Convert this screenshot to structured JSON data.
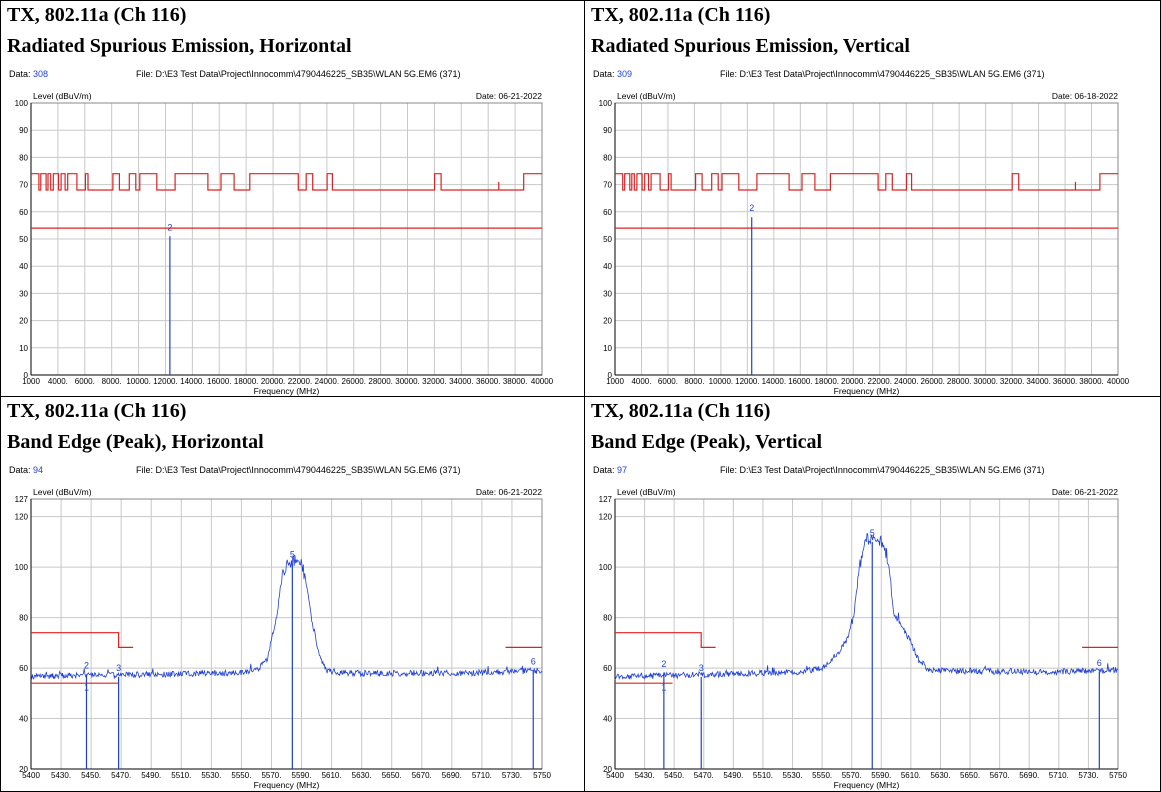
{
  "panels": [
    {
      "title_line1": "TX, 802.11a (Ch 116)",
      "title_line2": "Radiated Spurious Emission, Horizontal",
      "data_label": "Data:",
      "data_value": "308",
      "file": "File: D:\\E3 Test Data\\Project\\Innocomm\\4790446225_SB35\\WLAN 5G.EM6  (371)",
      "date": "Date: 06-21-2022"
    },
    {
      "title_line1": "TX, 802.11a (Ch 116)",
      "title_line2": "Radiated Spurious Emission, Vertical",
      "data_label": "Data:",
      "data_value": "309",
      "file": "File: D:\\E3 Test Data\\Project\\Innocomm\\4790446225_SB35\\WLAN 5G.EM6  (371)",
      "date": "Date: 06-18-2022"
    },
    {
      "title_line1": "TX, 802.11a (Ch 116)",
      "title_line2": "Band Edge (Peak), Horizontal",
      "data_label": "Data:",
      "data_value": "94",
      "file": "File: D:\\E3 Test Data\\Project\\Innocomm\\4790446225_SB35\\WLAN 5G.EM6  (371)",
      "date": "Date: 06-21-2022"
    },
    {
      "title_line1": "TX, 802.11a (Ch 116)",
      "title_line2": "Band Edge (Peak), Vertical",
      "data_label": "Data:",
      "data_value": "97",
      "file": "File: D:\\E3 Test Data\\Project\\Innocomm\\4790446225_SB35\\WLAN 5G.EM6  (371)",
      "date": "Date: 06-21-2022"
    }
  ],
  "colors": {
    "limit": "#e02020",
    "trace": "#1f3fd6",
    "grid": "#c8c8c8",
    "axis": "#000000"
  },
  "chart_data": [
    {
      "type": "line",
      "ylabel": "Level (dBuV/m)",
      "xlabel": "Frequency (MHz)",
      "xlim": [
        1000,
        40000
      ],
      "ylim": [
        0,
        100
      ],
      "x_ticks": [
        "1000",
        "4000.",
        "6000.",
        "8000.",
        "10000.",
        "12000.",
        "14000.",
        "16000.",
        "18000.",
        "20000.",
        "22000.",
        "24000.",
        "26000.",
        "28000.",
        "30000.",
        "32000.",
        "34000.",
        "36000.",
        "38000.",
        "40000"
      ],
      "y_ticks": [
        "0",
        "10",
        "20",
        "30",
        "40",
        "50",
        "60",
        "70",
        "80",
        "90",
        "100"
      ],
      "grid": true,
      "series": [
        {
          "kind": "limit_step",
          "points": [
            [
              1000,
              74
            ],
            [
              1600,
              74
            ],
            [
              1600,
              68
            ],
            [
              1750,
              68
            ],
            [
              1750,
              74
            ],
            [
              2150,
              74
            ],
            [
              2150,
              68
            ],
            [
              2300,
              68
            ],
            [
              2300,
              74
            ],
            [
              2500,
              74
            ],
            [
              2500,
              68
            ],
            [
              2700,
              68
            ],
            [
              2700,
              74
            ],
            [
              3100,
              74
            ],
            [
              3100,
              68
            ],
            [
              3300,
              68
            ],
            [
              3300,
              74
            ],
            [
              3600,
              74
            ],
            [
              3600,
              68
            ],
            [
              3800,
              68
            ],
            [
              3800,
              74
            ],
            [
              4500,
              74
            ],
            [
              4500,
              68
            ],
            [
              5150,
              68
            ],
            [
              5150,
              74
            ],
            [
              5350,
              74
            ],
            [
              5350,
              68
            ],
            [
              7250,
              68
            ],
            [
              7250,
              74
            ],
            [
              7750,
              74
            ],
            [
              7750,
              68
            ],
            [
              8500,
              68
            ],
            [
              8500,
              74
            ],
            [
              9000,
              74
            ],
            [
              9000,
              68
            ],
            [
              9300,
              68
            ],
            [
              9300,
              74
            ],
            [
              10600,
              74
            ],
            [
              10600,
              68
            ],
            [
              12000,
              68
            ],
            [
              12000,
              74
            ],
            [
              14500,
              74
            ],
            [
              14500,
              68
            ],
            [
              15500,
              68
            ],
            [
              15500,
              74
            ],
            [
              16500,
              74
            ],
            [
              16500,
              68
            ],
            [
              17700,
              68
            ],
            [
              17700,
              74
            ],
            [
              21400,
              74
            ],
            [
              21400,
              68
            ],
            [
              22000,
              68
            ],
            [
              22000,
              74
            ],
            [
              22500,
              74
            ],
            [
              22500,
              68
            ],
            [
              23600,
              68
            ],
            [
              23600,
              74
            ],
            [
              24000,
              74
            ],
            [
              24000,
              68
            ],
            [
              31800,
              68
            ],
            [
              31800,
              74
            ],
            [
              32300,
              74
            ],
            [
              32300,
              68
            ],
            [
              38600,
              68
            ],
            [
              38600,
              74
            ],
            [
              40000,
              74
            ]
          ]
        },
        {
          "kind": "limit_flat",
          "points": [
            [
              1000,
              54
            ],
            [
              40000,
              54
            ]
          ]
        },
        {
          "kind": "marker_line",
          "x": 11600,
          "y": 51,
          "label": "2"
        },
        {
          "kind": "spike",
          "x": 36700,
          "y1": 68,
          "y2": 71
        }
      ]
    },
    {
      "type": "line",
      "ylabel": "Level (dBuV/m)",
      "xlabel": "Frequency (MHz)",
      "xlim": [
        1000,
        40000
      ],
      "ylim": [
        0,
        100
      ],
      "x_ticks": [
        "1000",
        "4000.",
        "6000.",
        "8000.",
        "10000.",
        "12000.",
        "14000.",
        "16000.",
        "18000.",
        "20000.",
        "22000.",
        "24000.",
        "26000.",
        "28000.",
        "30000.",
        "32000.",
        "34000.",
        "36000.",
        "38000.",
        "40000"
      ],
      "y_ticks": [
        "0",
        "10",
        "20",
        "30",
        "40",
        "50",
        "60",
        "70",
        "80",
        "90",
        "100"
      ],
      "grid": true,
      "series": [
        {
          "kind": "limit_step",
          "points": [
            [
              1000,
              74
            ],
            [
              1600,
              74
            ],
            [
              1600,
              68
            ],
            [
              1750,
              68
            ],
            [
              1750,
              74
            ],
            [
              2150,
              74
            ],
            [
              2150,
              68
            ],
            [
              2300,
              68
            ],
            [
              2300,
              74
            ],
            [
              2500,
              74
            ],
            [
              2500,
              68
            ],
            [
              2700,
              68
            ],
            [
              2700,
              74
            ],
            [
              3100,
              74
            ],
            [
              3100,
              68
            ],
            [
              3300,
              68
            ],
            [
              3300,
              74
            ],
            [
              3600,
              74
            ],
            [
              3600,
              68
            ],
            [
              3800,
              68
            ],
            [
              3800,
              74
            ],
            [
              4500,
              74
            ],
            [
              4500,
              68
            ],
            [
              5150,
              68
            ],
            [
              5150,
              74
            ],
            [
              5350,
              74
            ],
            [
              5350,
              68
            ],
            [
              7250,
              68
            ],
            [
              7250,
              74
            ],
            [
              7750,
              74
            ],
            [
              7750,
              68
            ],
            [
              8500,
              68
            ],
            [
              8500,
              74
            ],
            [
              9000,
              74
            ],
            [
              9000,
              68
            ],
            [
              9300,
              68
            ],
            [
              9300,
              74
            ],
            [
              10600,
              74
            ],
            [
              10600,
              68
            ],
            [
              12000,
              68
            ],
            [
              12000,
              74
            ],
            [
              14500,
              74
            ],
            [
              14500,
              68
            ],
            [
              15500,
              68
            ],
            [
              15500,
              74
            ],
            [
              16500,
              74
            ],
            [
              16500,
              68
            ],
            [
              17700,
              68
            ],
            [
              17700,
              74
            ],
            [
              21400,
              74
            ],
            [
              21400,
              68
            ],
            [
              22000,
              68
            ],
            [
              22000,
              74
            ],
            [
              22500,
              74
            ],
            [
              22500,
              68
            ],
            [
              23600,
              68
            ],
            [
              23600,
              74
            ],
            [
              24000,
              74
            ],
            [
              24000,
              68
            ],
            [
              31800,
              68
            ],
            [
              31800,
              74
            ],
            [
              32300,
              74
            ],
            [
              32300,
              68
            ],
            [
              38600,
              68
            ],
            [
              38600,
              74
            ],
            [
              40000,
              74
            ]
          ]
        },
        {
          "kind": "limit_flat",
          "points": [
            [
              1000,
              54
            ],
            [
              40000,
              54
            ]
          ]
        },
        {
          "kind": "marker_line",
          "x": 11600,
          "y": 58,
          "label": "2"
        },
        {
          "kind": "spike",
          "x": 36700,
          "y1": 68,
          "y2": 71
        }
      ]
    },
    {
      "type": "line",
      "ylabel": "Level (dBuV/m)",
      "xlabel": "Frequency (MHz)",
      "xlim": [
        5400,
        5750
      ],
      "ylim": [
        20,
        127
      ],
      "x_ticks": [
        "5400",
        "5430.",
        "5450.",
        "5470.",
        "5490.",
        "5510.",
        "5530.",
        "5550.",
        "5570.",
        "5590.",
        "5610.",
        "5630.",
        "5650.",
        "5670.",
        "5690.",
        "5710.",
        "5730.",
        "5750"
      ],
      "y_ticks": [
        "20",
        "40",
        "60",
        "80",
        "100",
        "120",
        "127"
      ],
      "grid": true,
      "series": [
        {
          "kind": "limit_step",
          "points": [
            [
              5400,
              74
            ],
            [
              5460,
              74
            ],
            [
              5460,
              68.2
            ],
            [
              5470,
              68.2
            ]
          ]
        },
        {
          "kind": "limit_step",
          "points": [
            [
              5725,
              68.2
            ],
            [
              5750,
              68.2
            ]
          ]
        },
        {
          "kind": "limit_flat",
          "points": [
            [
              5400,
              54
            ],
            [
              5460,
              54
            ]
          ]
        },
        {
          "kind": "trace",
          "baseline": 57,
          "noise": 1.2,
          "envelope": [
            [
              5400,
              56.8
            ],
            [
              5460,
              57.2
            ],
            [
              5540,
              58
            ],
            [
              5555,
              59
            ],
            [
              5562,
              64
            ],
            [
              5568,
              80
            ],
            [
              5572,
              96
            ],
            [
              5575,
              101
            ],
            [
              5580,
              103
            ],
            [
              5585,
              101
            ],
            [
              5588,
              96
            ],
            [
              5592,
              80
            ],
            [
              5598,
              64
            ],
            [
              5602,
              59
            ],
            [
              5615,
              58
            ],
            [
              5700,
              58
            ],
            [
              5750,
              59
            ]
          ],
          "peak_x": [
            5572,
            5588
          ]
        },
        {
          "kind": "marker_line",
          "x": 5438,
          "y": 57.5,
          "label": "2"
        },
        {
          "kind": "marker_line",
          "x": 5460,
          "y": 56.5,
          "label": "3"
        },
        {
          "kind": "marker_line",
          "x": 5579,
          "y": 101.5,
          "label": "5"
        },
        {
          "kind": "marker_line",
          "x": 5744,
          "y": 59,
          "label": "6"
        },
        {
          "kind": "marker_dot",
          "x": 5438,
          "y": 53.8,
          "label": "1"
        }
      ]
    },
    {
      "type": "line",
      "ylabel": "Level (dBuV/m)",
      "xlabel": "Frequency (MHz)",
      "xlim": [
        5400,
        5750
      ],
      "ylim": [
        20,
        127
      ],
      "x_ticks": [
        "5400",
        "5430.",
        "5450.",
        "5470.",
        "5490.",
        "5510.",
        "5530.",
        "5550.",
        "5570.",
        "5590.",
        "5610.",
        "5630.",
        "5650.",
        "5670.",
        "5690.",
        "5710.",
        "5730.",
        "5750"
      ],
      "y_ticks": [
        "20",
        "40",
        "60",
        "80",
        "100",
        "120",
        "127"
      ],
      "grid": true,
      "series": [
        {
          "kind": "limit_step",
          "points": [
            [
              5400,
              74
            ],
            [
              5460,
              74
            ],
            [
              5460,
              68.2
            ],
            [
              5470,
              68.2
            ]
          ]
        },
        {
          "kind": "limit_step",
          "points": [
            [
              5725,
              68.2
            ],
            [
              5750,
              68.2
            ]
          ]
        },
        {
          "kind": "limit_flat",
          "points": [
            [
              5400,
              54
            ],
            [
              5440,
              54
            ]
          ]
        },
        {
          "kind": "trace",
          "baseline": 57,
          "noise": 1.2,
          "envelope": [
            [
              5400,
              56.5
            ],
            [
              5470,
              57.5
            ],
            [
              5530,
              58.5
            ],
            [
              5545,
              60
            ],
            [
              5555,
              66
            ],
            [
              5562,
              72
            ],
            [
              5566,
              80
            ],
            [
              5570,
              100
            ],
            [
              5574,
              110
            ],
            [
              5580,
              112
            ],
            [
              5586,
              110
            ],
            [
              5590,
              102
            ],
            [
              5594,
              82
            ],
            [
              5600,
              76
            ],
            [
              5606,
              70
            ],
            [
              5612,
              62
            ],
            [
              5618,
              59
            ],
            [
              5700,
              58.5
            ],
            [
              5750,
              59
            ]
          ],
          "peak_x": [
            5570,
            5590
          ]
        },
        {
          "kind": "marker_line",
          "x": 5434,
          "y": 58,
          "label": "2"
        },
        {
          "kind": "marker_line",
          "x": 5460,
          "y": 56.5,
          "label": "3"
        },
        {
          "kind": "marker_line",
          "x": 5579,
          "y": 110,
          "label": "5"
        },
        {
          "kind": "marker_line",
          "x": 5737,
          "y": 58.5,
          "label": "6"
        },
        {
          "kind": "marker_dot",
          "x": 5434,
          "y": 53.8,
          "label": "1"
        }
      ]
    }
  ]
}
